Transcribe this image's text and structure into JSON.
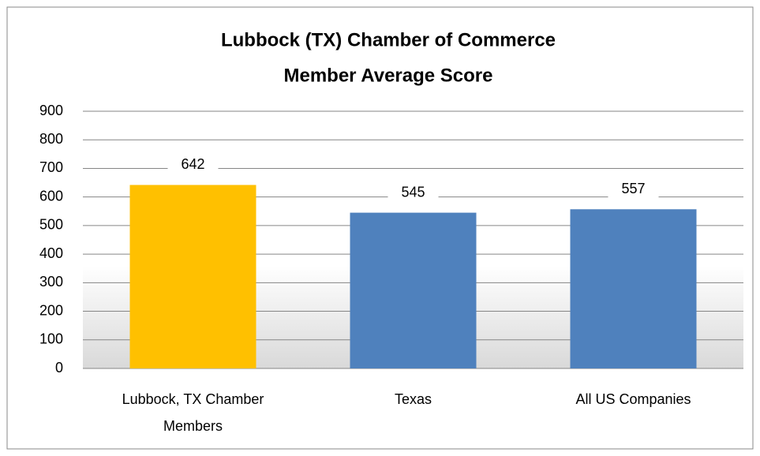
{
  "chart_data": {
    "type": "bar",
    "title": [
      "Lubbock (TX) Chamber of Commerce",
      "Member Average Score"
    ],
    "categories": [
      "Lubbock, TX Chamber Members",
      "Texas",
      "All US Companies"
    ],
    "values": [
      642,
      545,
      557
    ],
    "colors": [
      "#ffc000",
      "#4f81bd",
      "#4f81bd"
    ],
    "ylim": [
      0,
      900
    ],
    "yticks": [
      0,
      100,
      200,
      300,
      400,
      500,
      600,
      700,
      800,
      900
    ],
    "grid": true,
    "data_labels": true
  }
}
